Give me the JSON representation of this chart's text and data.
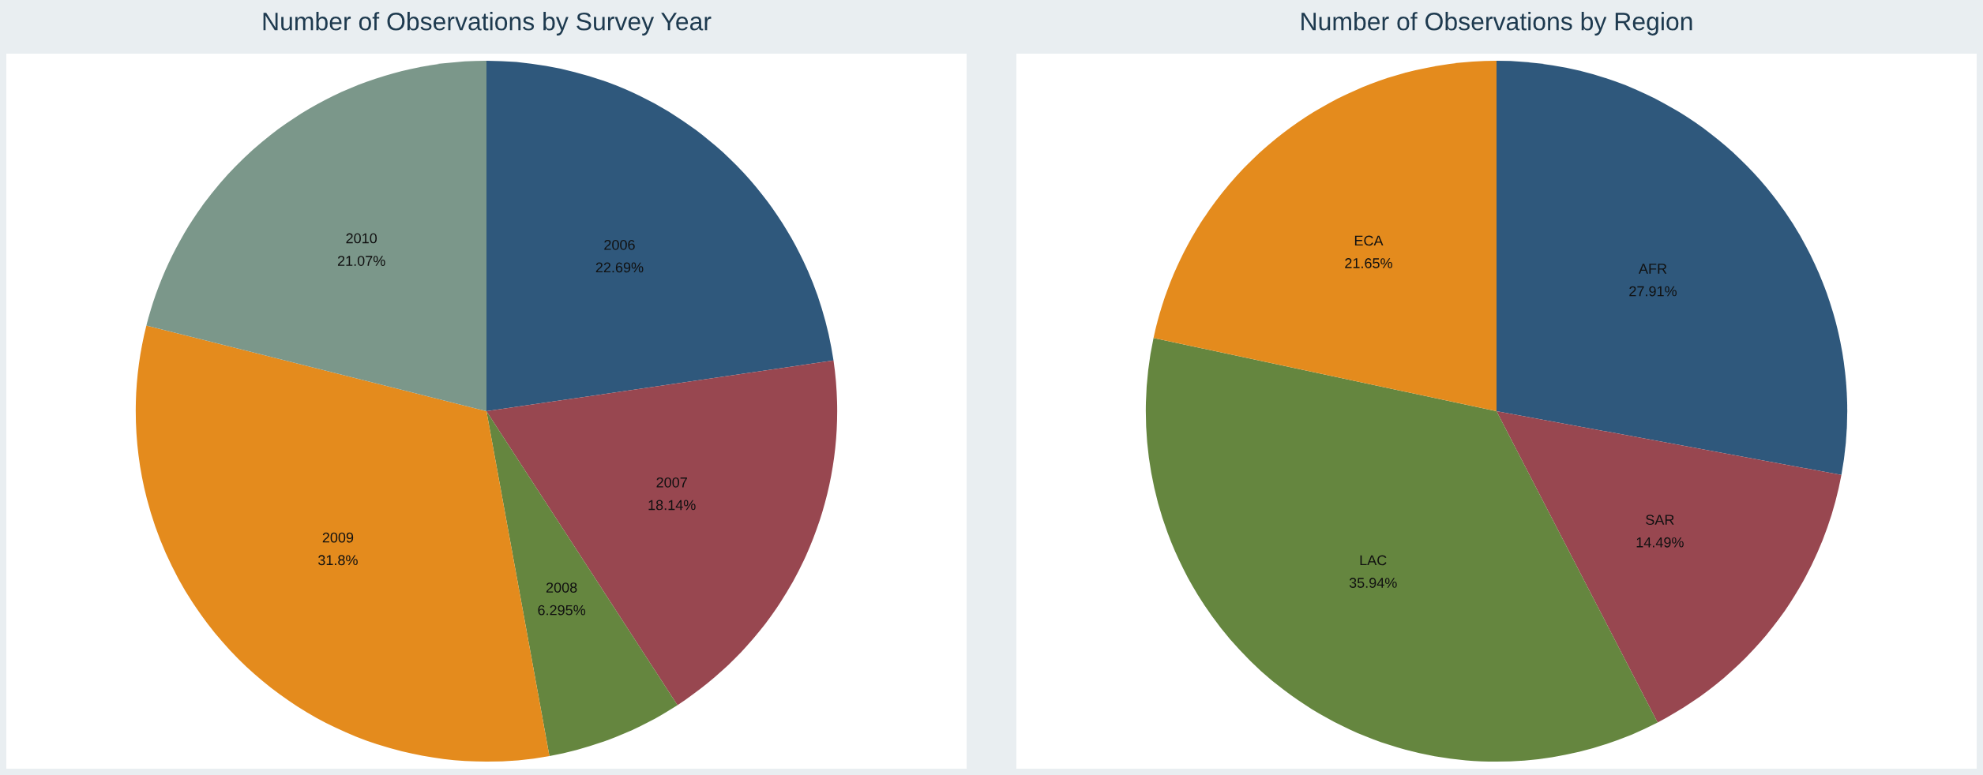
{
  "chart_data": [
    {
      "type": "pie",
      "title": "Number of Observations by Survey Year",
      "categories": [
        "2006",
        "2007",
        "2008",
        "2009",
        "2010"
      ],
      "values": [
        22.69,
        18.14,
        6.295,
        31.8,
        21.07
      ],
      "colors": [
        "#2f587c",
        "#984750",
        "#65863f",
        "#e48b1d",
        "#7b978a"
      ],
      "value_labels": [
        "22.69%",
        "18.14%",
        "6.295%",
        "31.8%",
        "21.07%"
      ]
    },
    {
      "type": "pie",
      "title": "Number of Observations by Region",
      "categories": [
        "AFR",
        "SAR",
        "LAC",
        "ECA"
      ],
      "values": [
        27.91,
        14.49,
        35.94,
        21.65
      ],
      "colors": [
        "#2f587c",
        "#984750",
        "#65863f",
        "#e48b1d"
      ],
      "value_labels": [
        "27.91%",
        "14.49%",
        "35.94%",
        "21.65%"
      ]
    }
  ]
}
